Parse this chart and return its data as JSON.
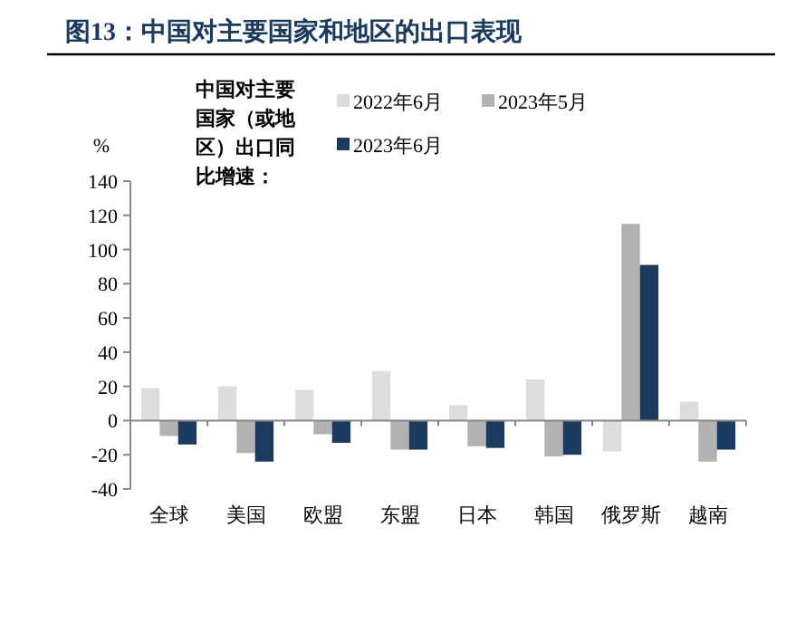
{
  "chart_data": {
    "type": "bar",
    "title": "图13：中国对主要国家和地区的出口表现",
    "ylabel": "%",
    "legend_title": "中国对主要国家（或地区）出口同比增速：",
    "legend": "top",
    "categories": [
      "全球",
      "美国",
      "欧盟",
      "东盟",
      "日本",
      "韩国",
      "俄罗斯",
      "越南"
    ],
    "series": [
      {
        "name": "2022年6月",
        "color": "#dddddd",
        "values": [
          19,
          20,
          18,
          29,
          9,
          24,
          -18,
          11
        ]
      },
      {
        "name": "2023年5月",
        "color": "#b2b2b2",
        "values": [
          -9,
          -19,
          -8,
          -17,
          -15,
          -21,
          115,
          -24
        ]
      },
      {
        "name": "2023年6月",
        "color": "#1a3a5e",
        "values": [
          -14,
          -24,
          -13,
          -17,
          -16,
          -20,
          91,
          -17
        ]
      }
    ],
    "ylim": [
      -40,
      140
    ],
    "yticks": [
      -40,
      -20,
      0,
      20,
      40,
      60,
      80,
      100,
      120,
      140
    ]
  }
}
